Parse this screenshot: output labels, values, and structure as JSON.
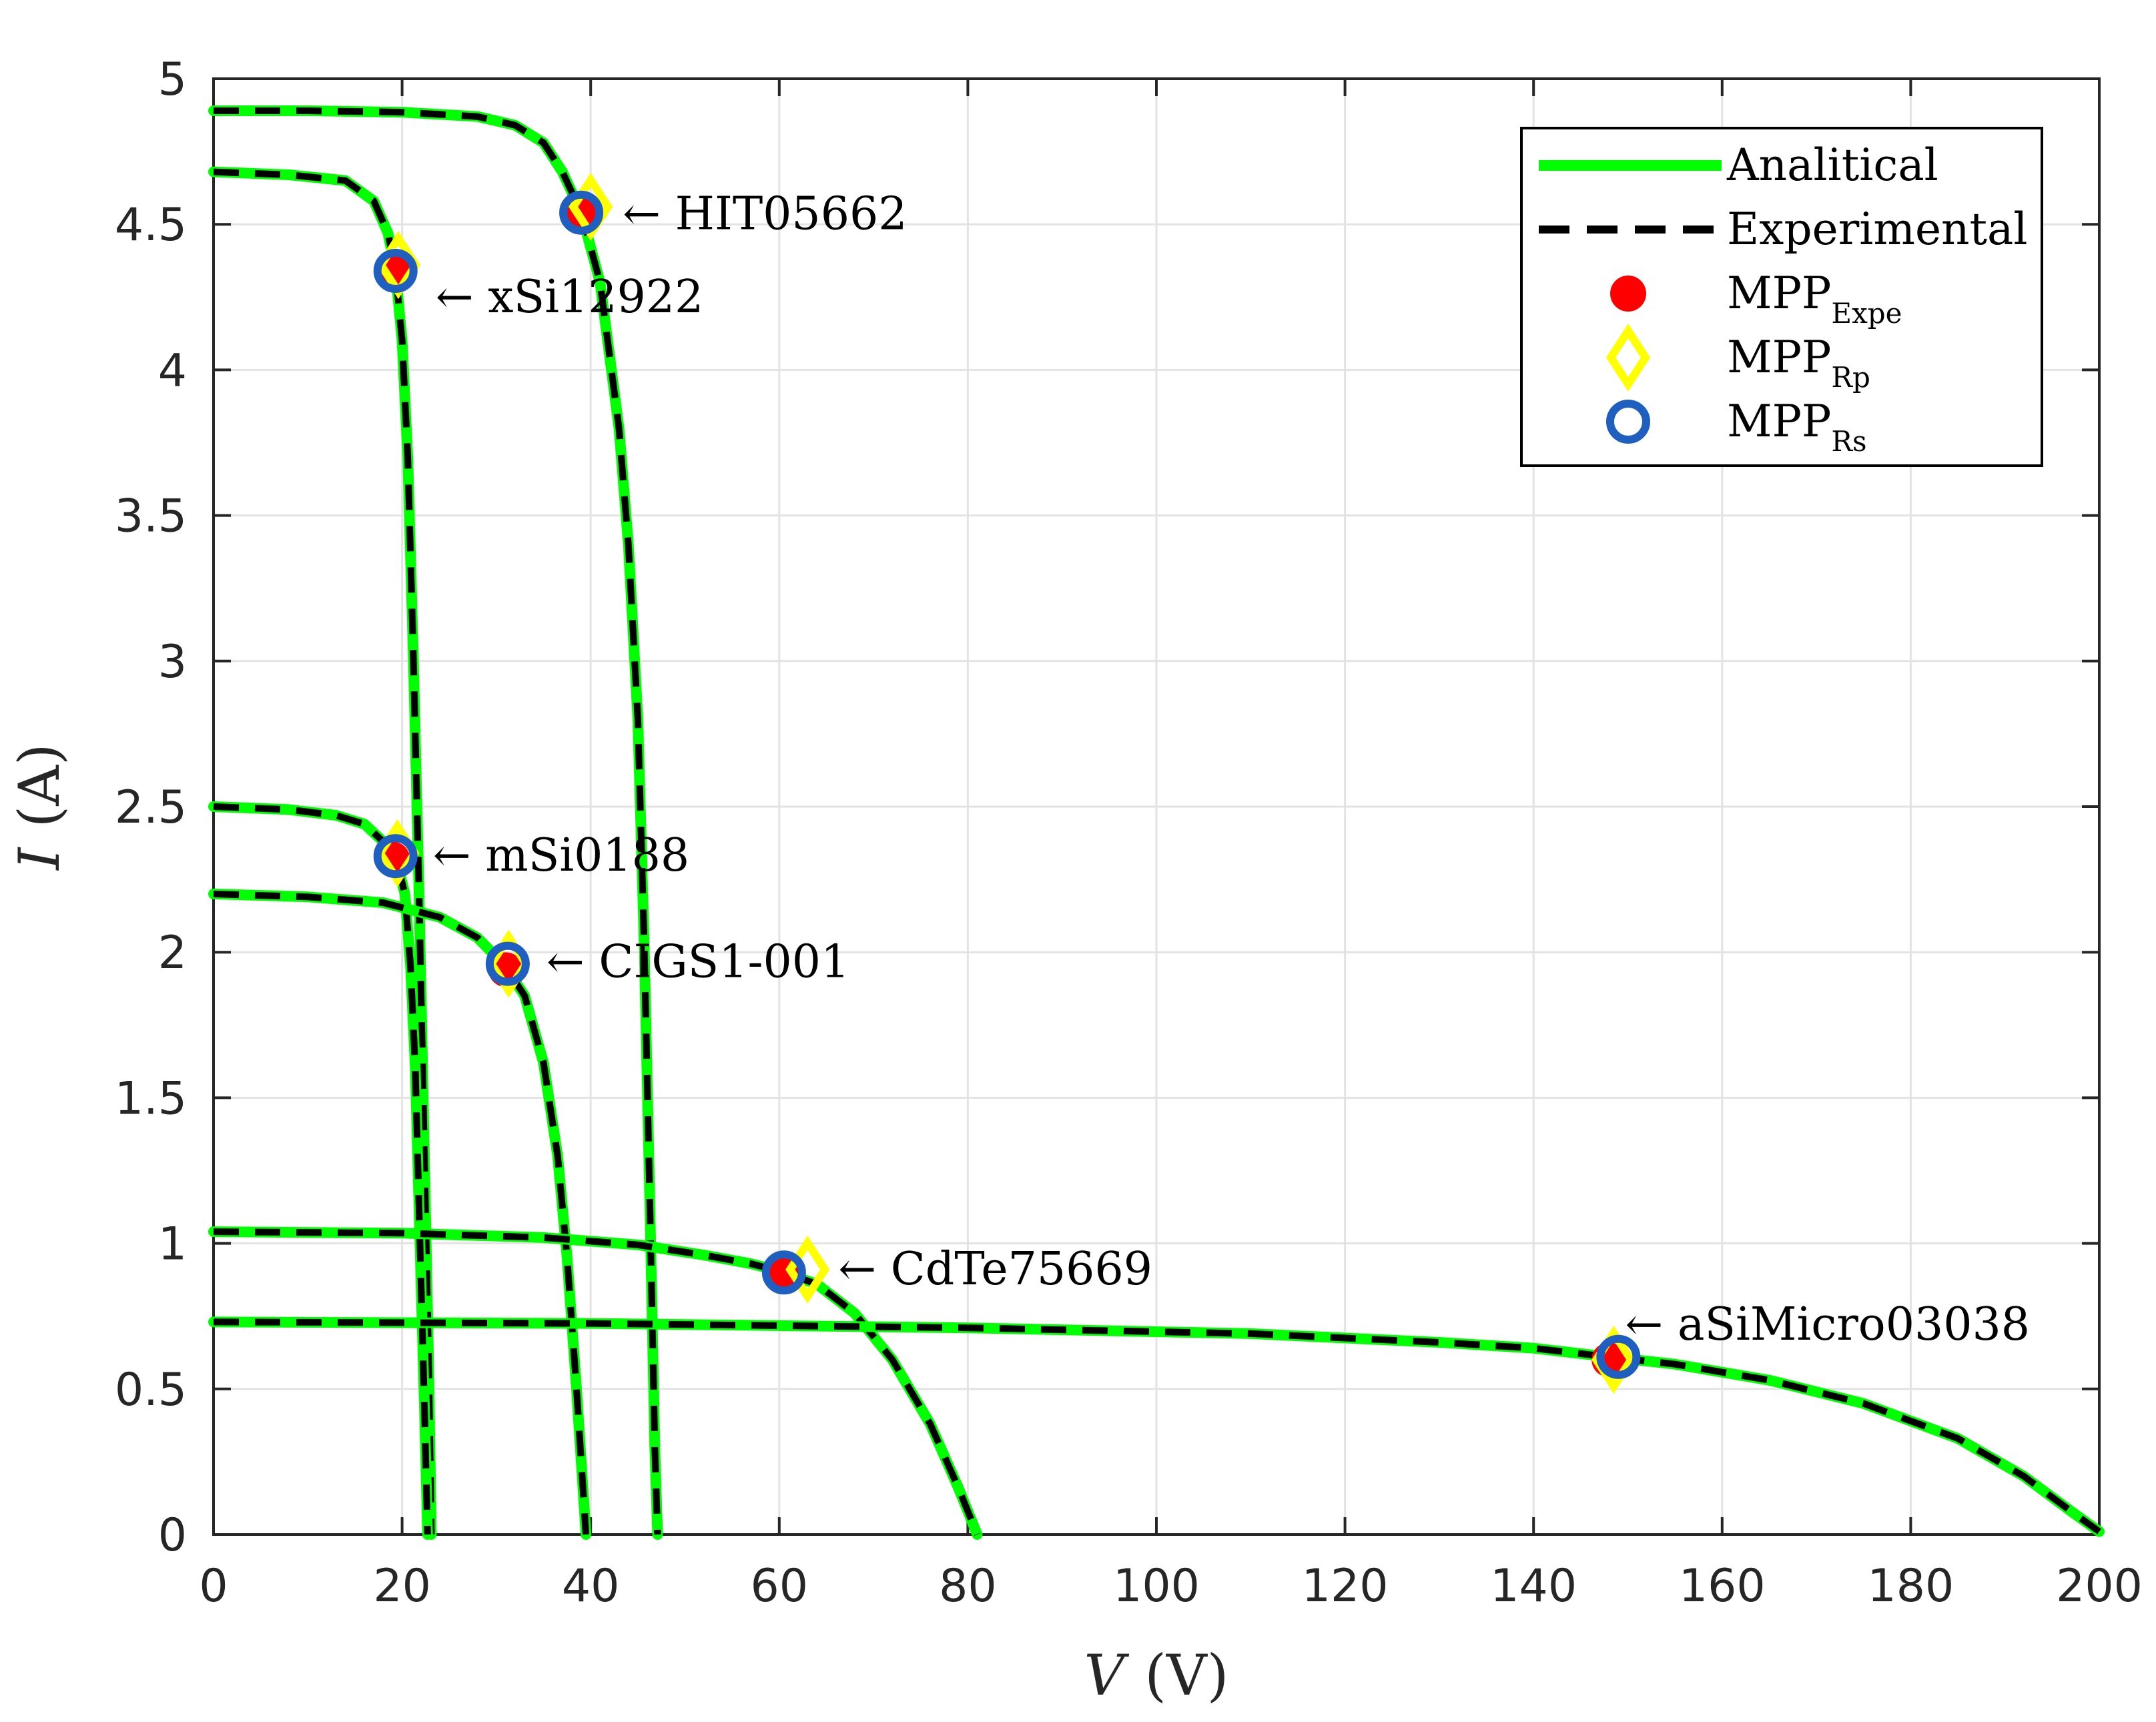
{
  "chart_data": {
    "type": "line",
    "title": "",
    "xlabel_var": "V",
    "xlabel_unit": "(V)",
    "ylabel_var": "I",
    "ylabel_unit": "(A)",
    "xlim": [
      0,
      200
    ],
    "ylim": [
      0,
      5
    ],
    "grid": true,
    "xticks": [
      0,
      20,
      40,
      60,
      80,
      100,
      120,
      140,
      160,
      180,
      200
    ],
    "yticks": [
      0,
      0.5,
      1,
      1.5,
      2,
      2.5,
      3,
      3.5,
      4,
      4.5,
      5
    ],
    "xtick_labels": [
      "0",
      "20",
      "40",
      "60",
      "80",
      "100",
      "120",
      "140",
      "160",
      "180",
      "200"
    ],
    "ytick_labels": [
      "0",
      "0.5",
      "1",
      "1.5",
      "2",
      "2.5",
      "3",
      "3.5",
      "4",
      "4.5",
      "5"
    ],
    "colors": {
      "analytical": "#00ff00",
      "experimental": "#000000",
      "mpp_expe": "#ff0000",
      "mpp_rp": "#ffff00",
      "mpp_rs": "#1f5fbf",
      "grid": "#e3e3e3",
      "axis": "#262626"
    },
    "legend": {
      "placement": "top-right",
      "entries": [
        {
          "key": "analytical",
          "label": "Analitical",
          "sub": ""
        },
        {
          "key": "experimental",
          "label": "Experimental",
          "sub": ""
        },
        {
          "key": "mpp_expe",
          "label": "MPP",
          "sub": "Expe"
        },
        {
          "key": "mpp_rp",
          "label": "MPP",
          "sub": "Rp"
        },
        {
          "key": "mpp_rs",
          "label": "MPP",
          "sub": "Rs"
        }
      ]
    },
    "series": [
      {
        "name": "HIT05662",
        "label": "← HIT05662",
        "points": [
          [
            0,
            4.89
          ],
          [
            10,
            4.89
          ],
          [
            20,
            4.885
          ],
          [
            28,
            4.87
          ],
          [
            32,
            4.84
          ],
          [
            35,
            4.78
          ],
          [
            37,
            4.68
          ],
          [
            39,
            4.54
          ],
          [
            41,
            4.3
          ],
          [
            43,
            3.8
          ],
          [
            44,
            3.4
          ],
          [
            45,
            2.8
          ],
          [
            45.7,
            2.0
          ],
          [
            46.3,
            1.1
          ],
          [
            46.8,
            0.3
          ],
          [
            47.1,
            0.0
          ]
        ],
        "mpp_expe": [
          39.0,
          4.55
        ],
        "mpp_rp": [
          40.0,
          4.56
        ],
        "mpp_rs": [
          39.0,
          4.54
        ]
      },
      {
        "name": "xSi12922",
        "label": "← xSi12922",
        "points": [
          [
            0,
            4.68
          ],
          [
            8,
            4.67
          ],
          [
            14,
            4.65
          ],
          [
            17,
            4.58
          ],
          [
            18.5,
            4.47
          ],
          [
            19.3,
            4.34
          ],
          [
            20,
            4.1
          ],
          [
            20.6,
            3.7
          ],
          [
            21.2,
            3.0
          ],
          [
            21.8,
            2.2
          ],
          [
            22.3,
            1.4
          ],
          [
            22.8,
            0.6
          ],
          [
            23.1,
            0.0
          ]
        ],
        "mpp_expe": [
          19.2,
          4.33
        ],
        "mpp_rp": [
          19.6,
          4.36
        ],
        "mpp_rs": [
          19.3,
          4.34
        ]
      },
      {
        "name": "mSi0188",
        "label": "← mSi0188",
        "points": [
          [
            0,
            2.5
          ],
          [
            8,
            2.49
          ],
          [
            13,
            2.47
          ],
          [
            16,
            2.44
          ],
          [
            18,
            2.38
          ],
          [
            19.3,
            2.33
          ],
          [
            20.3,
            2.2
          ],
          [
            20.9,
            1.95
          ],
          [
            21.4,
            1.6
          ],
          [
            21.9,
            1.0
          ],
          [
            22.4,
            0.4
          ],
          [
            22.7,
            0.0
          ]
        ],
        "mpp_expe": [
          19.0,
          2.32
        ],
        "mpp_rp": [
          19.5,
          2.34
        ],
        "mpp_rs": [
          19.3,
          2.33
        ]
      },
      {
        "name": "CIGS1-001",
        "label": "← CIGS1-001",
        "points": [
          [
            0,
            2.2
          ],
          [
            10,
            2.19
          ],
          [
            18,
            2.17
          ],
          [
            24,
            2.12
          ],
          [
            28,
            2.05
          ],
          [
            31,
            1.95
          ],
          [
            33,
            1.85
          ],
          [
            35,
            1.62
          ],
          [
            36.5,
            1.3
          ],
          [
            37.5,
            0.95
          ],
          [
            38.5,
            0.5
          ],
          [
            39.3,
            0.1
          ],
          [
            39.5,
            0.0
          ]
        ],
        "mpp_expe": [
          31.0,
          1.94
        ],
        "mpp_rp": [
          31.3,
          1.96
        ],
        "mpp_rs": [
          31.2,
          1.96
        ]
      },
      {
        "name": "CdTe75669",
        "label": "← CdTe75669",
        "points": [
          [
            0,
            1.04
          ],
          [
            20,
            1.035
          ],
          [
            35,
            1.02
          ],
          [
            45,
            0.995
          ],
          [
            52,
            0.96
          ],
          [
            57,
            0.93
          ],
          [
            60,
            0.905
          ],
          [
            64,
            0.86
          ],
          [
            68,
            0.76
          ],
          [
            72,
            0.6
          ],
          [
            76,
            0.38
          ],
          [
            79,
            0.16
          ],
          [
            81,
            0.0
          ]
        ],
        "mpp_expe": [
          60.3,
          0.9
        ],
        "mpp_rp": [
          63.0,
          0.91
        ],
        "mpp_rs": [
          60.5,
          0.9
        ]
      },
      {
        "name": "aSiMicro03038",
        "label": "← aSiMicro03038",
        "points": [
          [
            0,
            0.73
          ],
          [
            40,
            0.725
          ],
          [
            80,
            0.71
          ],
          [
            110,
            0.69
          ],
          [
            130,
            0.66
          ],
          [
            140,
            0.64
          ],
          [
            148,
            0.61
          ],
          [
            155,
            0.585
          ],
          [
            165,
            0.53
          ],
          [
            175,
            0.45
          ],
          [
            185,
            0.33
          ],
          [
            192,
            0.2
          ],
          [
            197,
            0.08
          ],
          [
            200,
            0.01
          ]
        ],
        "mpp_expe": [
          148.0,
          0.6
        ],
        "mpp_rp": [
          148.5,
          0.6
        ],
        "mpp_rs": [
          149.0,
          0.61
        ]
      }
    ]
  }
}
